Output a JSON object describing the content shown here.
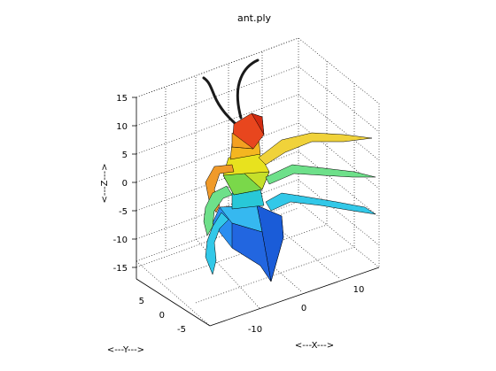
{
  "chart_data": {
    "type": "surface3d",
    "title": "ant.ply",
    "xlabel": "<---X--->",
    "ylabel": "<---Y--->",
    "zlabel": "<---Z--->",
    "xticks": [
      "-10",
      "0",
      "10"
    ],
    "yticks": [
      "-5",
      "0",
      "5"
    ],
    "zticks": [
      "15",
      "10",
      "5",
      "0",
      "-5",
      "-10",
      "-15"
    ],
    "xlim": [
      -16,
      16
    ],
    "ylim": [
      -8,
      8
    ],
    "zlim": [
      -17,
      17
    ],
    "grid": true,
    "colormap": "jet",
    "colors": {
      "head": "#e8461e",
      "head_dark": "#d22a10",
      "neck": "#f4b620",
      "thorax": "#e8e21e",
      "thorax_green": "#7ad84a",
      "abdomen": "#2a8ef0",
      "abdomen_dark": "#1a5cd8",
      "abdomen_light": "#36b8f0",
      "leg_yellow": "#f0d23a",
      "leg_green": "#6ee08a",
      "leg_cyan": "#32c8e8",
      "leg_orange": "#f09a2a",
      "antenna": "#1a1a1a"
    }
  }
}
